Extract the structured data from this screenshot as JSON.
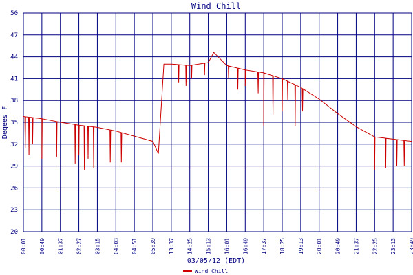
{
  "chart_data": {
    "type": "line",
    "title": "Wind Chill",
    "xlabel": "03/05/12 (EDT)",
    "ylabel": "Degees F",
    "ylim": [
      20,
      50
    ],
    "yticks": [
      "20",
      "23",
      "26",
      "29",
      "32",
      "35",
      "38",
      "41",
      "44",
      "47",
      "50"
    ],
    "xticks": [
      "00:01",
      "00:49",
      "01:37",
      "02:27",
      "03:15",
      "04:03",
      "04:51",
      "05:39",
      "13:37",
      "14:25",
      "15:13",
      "16:01",
      "16:49",
      "17:37",
      "18:25",
      "19:13",
      "20:01",
      "20:49",
      "21:37",
      "22:25",
      "23:13",
      "23:49"
    ],
    "grid": true,
    "legend_position": "bottom-left",
    "colors": {
      "series": "#cc0000",
      "grid": "#000080",
      "axis": "#000080",
      "text": "#000080"
    },
    "series": [
      {
        "name": "Wind Chill",
        "baseline": [
          [
            0,
            35.8
          ],
          [
            1,
            35.5
          ],
          [
            2,
            35.0
          ],
          [
            3,
            34.6
          ],
          [
            4,
            34.3
          ],
          [
            5,
            33.8
          ],
          [
            6,
            33.1
          ],
          [
            7,
            32.4
          ],
          [
            7.3,
            30.7
          ],
          [
            7.6,
            43.0
          ],
          [
            8,
            43.0
          ],
          [
            9,
            42.8
          ],
          [
            10,
            43.2
          ],
          [
            10.3,
            44.6
          ],
          [
            11,
            42.8
          ],
          [
            12,
            42.2
          ],
          [
            13,
            41.8
          ],
          [
            14,
            41.0
          ],
          [
            15,
            39.8
          ],
          [
            16,
            38.2
          ],
          [
            17,
            36.2
          ],
          [
            18,
            34.4
          ],
          [
            19,
            33.0
          ],
          [
            21,
            32.4
          ]
        ],
        "dips": [
          [
            0.1,
            31.5
          ],
          [
            0.3,
            30.5
          ],
          [
            0.5,
            32.0
          ],
          [
            1.0,
            30.0
          ],
          [
            1.8,
            30.2
          ],
          [
            2.8,
            29.3
          ],
          [
            3.0,
            30.5
          ],
          [
            3.3,
            28.5
          ],
          [
            3.5,
            30.0
          ],
          [
            3.8,
            28.7
          ],
          [
            4.7,
            29.5
          ],
          [
            5.3,
            29.5
          ],
          [
            8.4,
            40.5
          ],
          [
            8.8,
            40.0
          ],
          [
            9.1,
            41.0
          ],
          [
            9.8,
            41.5
          ],
          [
            11.1,
            41.0
          ],
          [
            11.6,
            39.5
          ],
          [
            12.0,
            40.0
          ],
          [
            12.7,
            39.0
          ],
          [
            13.0,
            34.5
          ],
          [
            13.5,
            36.0
          ],
          [
            14.0,
            36.5
          ],
          [
            14.3,
            38.0
          ],
          [
            14.7,
            34.5
          ],
          [
            15.1,
            36.5
          ],
          [
            19.0,
            28.5
          ],
          [
            19.6,
            28.7
          ],
          [
            20.2,
            29.0
          ],
          [
            20.6,
            29.0
          ]
        ]
      }
    ]
  }
}
